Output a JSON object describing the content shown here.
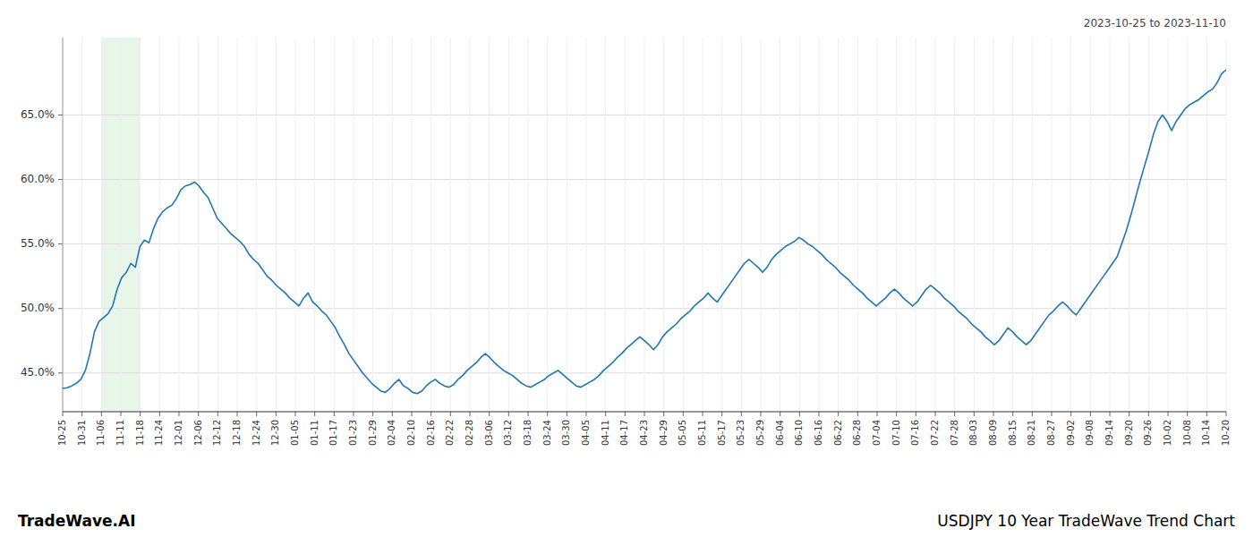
{
  "chart_data": {
    "type": "line",
    "title": "USDJPY 10 Year TradeWave Trend Chart",
    "subtitle": "2023-10-25 to 2023-11-10",
    "annotations": [
      "TradeWave.AI"
    ],
    "color": "#1f77b0",
    "grid": true,
    "highlight": {
      "xstart": 8.533333333333333,
      "xend": 17.066666666666666,
      "color": "#e8f5e9"
    },
    "xlim": [
      0,
      256
    ],
    "xticks": [
      {
        "value": 0,
        "label": "10-25"
      },
      {
        "value": 4.266666666666667,
        "label": "10-31"
      },
      {
        "value": 8.533333333333333,
        "label": "11-06"
      },
      {
        "value": 12.8,
        "label": "11-11"
      },
      {
        "value": 17.066666666666666,
        "label": "11-18"
      },
      {
        "value": 21.333333333333332,
        "label": "11-24"
      },
      {
        "value": 25.6,
        "label": "12-01"
      },
      {
        "value": 29.866666666666667,
        "label": "12-06"
      },
      {
        "value": 34.13333333333333,
        "label": "12-12"
      },
      {
        "value": 38.4,
        "label": "12-18"
      },
      {
        "value": 42.666666666666664,
        "label": "12-24"
      },
      {
        "value": 46.93333333333333,
        "label": "12-30"
      },
      {
        "value": 51.2,
        "label": "01-05"
      },
      {
        "value": 55.46666666666667,
        "label": "01-11"
      },
      {
        "value": 59.733333333333334,
        "label": "01-17"
      },
      {
        "value": 64,
        "label": "01-23"
      },
      {
        "value": 68.26666666666667,
        "label": "01-29"
      },
      {
        "value": 72.53333333333333,
        "label": "02-04"
      },
      {
        "value": 76.8,
        "label": "02-10"
      },
      {
        "value": 81.06666666666666,
        "label": "02-16"
      },
      {
        "value": 85.33333333333333,
        "label": "02-22"
      },
      {
        "value": 89.6,
        "label": "02-28"
      },
      {
        "value": 93.86666666666666,
        "label": "03-06"
      },
      {
        "value": 98.13333333333334,
        "label": "03-12"
      },
      {
        "value": 102.4,
        "label": "03-18"
      },
      {
        "value": 106.66666666666667,
        "label": "03-24"
      },
      {
        "value": 110.93333333333334,
        "label": "03-30"
      },
      {
        "value": 115.2,
        "label": "04-05"
      },
      {
        "value": 119.46666666666667,
        "label": "04-11"
      },
      {
        "value": 123.73333333333333,
        "label": "04-17"
      },
      {
        "value": 128,
        "label": "04-23"
      },
      {
        "value": 132.26666666666668,
        "label": "04-29"
      },
      {
        "value": 136.53333333333333,
        "label": "05-05"
      },
      {
        "value": 140.8,
        "label": "05-11"
      },
      {
        "value": 145.06666666666666,
        "label": "05-17"
      },
      {
        "value": 149.33333333333334,
        "label": "05-23"
      },
      {
        "value": 153.6,
        "label": "05-29"
      },
      {
        "value": 157.86666666666667,
        "label": "06-04"
      },
      {
        "value": 162.13333333333333,
        "label": "06-10"
      },
      {
        "value": 166.4,
        "label": "06-16"
      },
      {
        "value": 170.66666666666666,
        "label": "06-22"
      },
      {
        "value": 174.93333333333334,
        "label": "06-28"
      },
      {
        "value": 179.2,
        "label": "07-04"
      },
      {
        "value": 183.46666666666667,
        "label": "07-10"
      },
      {
        "value": 187.73333333333332,
        "label": "07-16"
      },
      {
        "value": 192,
        "label": "07-22"
      },
      {
        "value": 196.26666666666668,
        "label": "07-28"
      },
      {
        "value": 200.53333333333333,
        "label": "08-03"
      },
      {
        "value": 204.8,
        "label": "08-09"
      },
      {
        "value": 209.06666666666666,
        "label": "08-15"
      },
      {
        "value": 213.33333333333334,
        "label": "08-21"
      },
      {
        "value": 217.6,
        "label": "08-27"
      },
      {
        "value": 221.86666666666667,
        "label": "09-02"
      },
      {
        "value": 226.13333333333333,
        "label": "09-08"
      },
      {
        "value": 230.4,
        "label": "09-14"
      },
      {
        "value": 234.66666666666666,
        "label": "09-20"
      },
      {
        "value": 238.93333333333334,
        "label": "09-26"
      },
      {
        "value": 243.2,
        "label": "10-02"
      },
      {
        "value": 247.46666666666667,
        "label": "10-08"
      },
      {
        "value": 251.73333333333332,
        "label": "10-14"
      },
      {
        "value": 256,
        "label": "10-20"
      }
    ],
    "ylim": [
      42.0,
      71.0
    ],
    "yticks": [
      {
        "value": 45.0,
        "label": "45.0%"
      },
      {
        "value": 50.0,
        "label": "50.0%"
      },
      {
        "value": 55.0,
        "label": "55.0%"
      },
      {
        "value": 60.0,
        "label": "60.0%"
      },
      {
        "value": 65.0,
        "label": "65.0%"
      }
    ],
    "values": [
      43.8,
      43.85,
      44.0,
      44.2,
      44.5,
      45.2,
      46.5,
      48.2,
      49.0,
      49.3,
      49.6,
      50.2,
      51.5,
      52.4,
      52.8,
      53.5,
      53.2,
      54.8,
      55.3,
      55.1,
      56.2,
      57.0,
      57.5,
      57.8,
      58.0,
      58.5,
      59.2,
      59.5,
      59.6,
      59.8,
      59.5,
      59.0,
      58.6,
      57.8,
      57.0,
      56.6,
      56.2,
      55.8,
      55.5,
      55.2,
      54.8,
      54.2,
      53.8,
      53.5,
      53.0,
      52.5,
      52.2,
      51.8,
      51.5,
      51.2,
      50.8,
      50.5,
      50.2,
      50.8,
      51.2,
      50.5,
      50.2,
      49.8,
      49.5,
      49.0,
      48.5,
      47.8,
      47.2,
      46.5,
      46.0,
      45.5,
      45.0,
      44.6,
      44.2,
      43.9,
      43.6,
      43.5,
      43.8,
      44.2,
      44.5,
      44.0,
      43.8,
      43.5,
      43.4,
      43.6,
      44.0,
      44.3,
      44.5,
      44.2,
      44.0,
      43.9,
      44.1,
      44.5,
      44.8,
      45.2,
      45.5,
      45.8,
      46.2,
      46.5,
      46.2,
      45.8,
      45.5,
      45.2,
      45.0,
      44.8,
      44.5,
      44.2,
      44.0,
      43.9,
      44.1,
      44.3,
      44.5,
      44.8,
      45.0,
      45.2,
      44.9,
      44.6,
      44.3,
      44.0,
      43.9,
      44.1,
      44.3,
      44.5,
      44.8,
      45.2,
      45.5,
      45.8,
      46.2,
      46.5,
      46.9,
      47.2,
      47.5,
      47.8,
      47.5,
      47.2,
      46.8,
      47.2,
      47.8,
      48.2,
      48.5,
      48.8,
      49.2,
      49.5,
      49.8,
      50.2,
      50.5,
      50.8,
      51.2,
      50.8,
      50.5,
      51.0,
      51.5,
      52.0,
      52.5,
      53.0,
      53.5,
      53.8,
      53.5,
      53.2,
      52.8,
      53.2,
      53.8,
      54.2,
      54.5,
      54.8,
      55.0,
      55.2,
      55.5,
      55.3,
      55.0,
      54.8,
      54.5,
      54.2,
      53.8,
      53.5,
      53.2,
      52.8,
      52.5,
      52.2,
      51.8,
      51.5,
      51.2,
      50.8,
      50.5,
      50.2,
      50.5,
      50.8,
      51.2,
      51.5,
      51.2,
      50.8,
      50.5,
      50.2,
      50.5,
      51.0,
      51.5,
      51.8,
      51.5,
      51.2,
      50.8,
      50.5,
      50.2,
      49.8,
      49.5,
      49.2,
      48.8,
      48.5,
      48.2,
      47.8,
      47.5,
      47.2,
      47.5,
      48.0,
      48.5,
      48.2,
      47.8,
      47.5,
      47.2,
      47.5,
      48.0,
      48.5,
      49.0,
      49.5,
      49.8,
      50.2,
      50.5,
      50.2,
      49.8,
      49.5,
      50.0,
      50.5,
      51.0,
      51.5,
      52.0,
      52.5,
      53.0,
      53.5,
      54.0,
      55.0,
      56.0,
      57.2,
      58.5,
      59.8,
      61.0,
      62.2,
      63.5,
      64.5,
      65.0,
      64.5,
      63.8,
      64.5,
      65.0,
      65.5,
      65.8,
      66.0,
      66.2,
      66.5,
      66.8,
      67.0,
      67.5,
      68.2,
      68.5
    ]
  }
}
